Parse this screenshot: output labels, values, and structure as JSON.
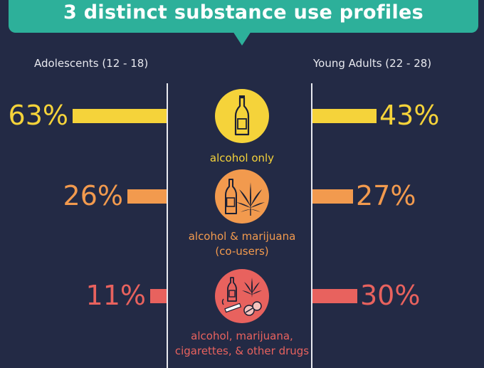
{
  "header": {
    "title": "3 distinct substance use profiles"
  },
  "groups": {
    "left": "Adolescents (12 - 18)",
    "right": "Young Adults (22 - 28)"
  },
  "colors": {
    "background": "#232a45",
    "banner": "#2db09a",
    "alcohol_only": "#f5d33a",
    "alcohol_marijuana": "#f29a4e",
    "polysubstance": "#e8625e"
  },
  "chart_data": {
    "type": "bar",
    "title": "3 distinct substance use profiles",
    "orientation": "horizontal-mirrored",
    "categories": [
      "alcohol only",
      "alcohol & marijuana (co-users)",
      "alcohol, marijuana, cigarettes, & other drugs"
    ],
    "series": [
      {
        "name": "Adolescents (12 - 18)",
        "values": [
          63,
          26,
          11
        ]
      },
      {
        "name": "Young Adults (22 - 28)",
        "values": [
          43,
          27,
          30
        ]
      }
    ],
    "value_labels_left": [
      "63%",
      "26%",
      "11%"
    ],
    "value_labels_right": [
      "43%",
      "27%",
      "30%"
    ],
    "category_labels": [
      [
        "alcohol only"
      ],
      [
        "alcohol & marijuana",
        "(co-users)"
      ],
      [
        "alcohol, marijuana,",
        "cigarettes, & other drugs"
      ]
    ],
    "unit": "%"
  }
}
